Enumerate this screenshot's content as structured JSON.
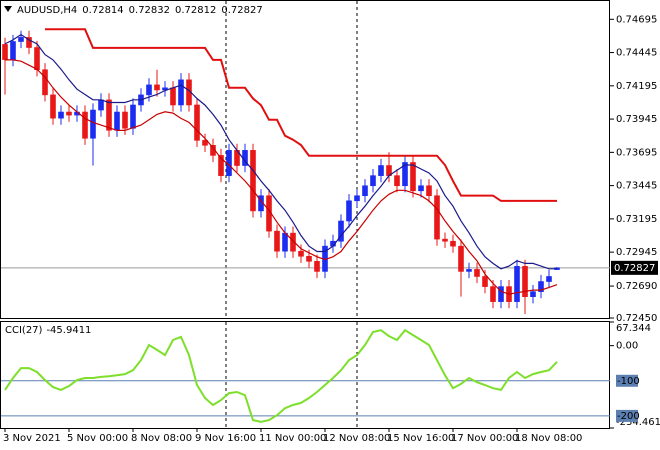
{
  "chart_data": [
    {
      "type": "candlestick",
      "title": "AUDUSD,H4",
      "categories": [
        "3 Nov 2021",
        null,
        null,
        null,
        null,
        null,
        null,
        null,
        "5 Nov 00:00",
        null,
        null,
        null,
        null,
        null,
        null,
        null,
        "8 Nov 08:00",
        null,
        null,
        null,
        null,
        null,
        null,
        null,
        "9 Nov 16:00",
        null,
        null,
        null,
        null,
        null,
        null,
        null,
        "11 Nov 00:00",
        null,
        null,
        null,
        null,
        null,
        null,
        null,
        "12 Nov 08:00",
        null,
        null,
        null,
        null,
        null,
        null,
        null,
        "15 Nov 16:00",
        null,
        null,
        null,
        null,
        null,
        null,
        null,
        "17 Nov 00:00",
        null,
        null,
        null,
        null,
        null,
        null,
        null,
        "18 Nov 08:00",
        null,
        null,
        null,
        null,
        null
      ],
      "open": [
        0.74506,
        0.74392,
        0.74528,
        0.74559,
        0.74483,
        0.74316,
        0.74127,
        0.73952,
        0.73998,
        0.73975,
        0.73998,
        0.73801,
        0.74013,
        0.74089,
        0.73861,
        0.73998,
        0.73876,
        0.74051,
        0.74127,
        0.74202,
        0.74164,
        0.7418,
        0.74051,
        0.7424,
        0.74051,
        0.73785,
        0.73748,
        0.73672,
        0.7352,
        0.7371,
        0.73596,
        0.7371,
        0.73255,
        0.73369,
        0.73103,
        0.72952,
        0.73088,
        0.72952,
        0.72914,
        0.72876,
        0.728,
        0.7299,
        0.73027,
        0.73179,
        0.73331,
        0.73369,
        0.73444,
        0.7352,
        0.73596,
        0.7352,
        0.73444,
        0.73619,
        0.73406,
        0.73444,
        0.73369,
        0.73043,
        0.73027,
        0.7299,
        0.728,
        0.72815,
        0.72762,
        0.72686,
        0.72573,
        0.72686,
        0.72573,
        0.72838,
        0.7261,
        0.72648,
        0.72724,
        0.72814
      ],
      "high": [
        0.74556,
        0.74578,
        0.74609,
        0.74609,
        0.74533,
        0.74366,
        0.74177,
        0.74048,
        0.74048,
        0.74048,
        0.74048,
        0.74063,
        0.74139,
        0.74139,
        0.74048,
        0.74048,
        0.74101,
        0.74177,
        0.74252,
        0.74316,
        0.7423,
        0.7423,
        0.7429,
        0.7429,
        0.74101,
        0.73835,
        0.73798,
        0.73722,
        0.7376,
        0.7376,
        0.7376,
        0.7376,
        0.73419,
        0.73419,
        0.73153,
        0.73138,
        0.73138,
        0.73002,
        0.72964,
        0.72926,
        0.7304,
        0.73077,
        0.73229,
        0.73381,
        0.73419,
        0.73494,
        0.7357,
        0.73646,
        0.73696,
        0.7357,
        0.73669,
        0.73669,
        0.73494,
        0.73494,
        0.73419,
        0.73093,
        0.73077,
        0.7304,
        0.72865,
        0.72865,
        0.72812,
        0.72736,
        0.72736,
        0.72736,
        0.72888,
        0.72888,
        0.72698,
        0.72774,
        0.72812,
        0.72832
      ],
      "low": [
        0.7413,
        0.74342,
        0.74478,
        0.74433,
        0.74266,
        0.74077,
        0.73902,
        0.73902,
        0.73925,
        0.73925,
        0.73751,
        0.73596,
        0.73963,
        0.73811,
        0.73811,
        0.73826,
        0.73826,
        0.74001,
        0.74077,
        0.74114,
        0.74114,
        0.74001,
        0.74001,
        0.74001,
        0.73735,
        0.73698,
        0.73622,
        0.7347,
        0.7347,
        0.73546,
        0.73546,
        0.73205,
        0.73205,
        0.73053,
        0.72902,
        0.72902,
        0.72902,
        0.72864,
        0.72826,
        0.7275,
        0.7275,
        0.7294,
        0.72977,
        0.73129,
        0.73281,
        0.73319,
        0.73394,
        0.7347,
        0.7347,
        0.73394,
        0.73394,
        0.73356,
        0.73356,
        0.73319,
        0.72993,
        0.72977,
        0.7294,
        0.72611,
        0.7275,
        0.72712,
        0.72636,
        0.72523,
        0.72523,
        0.72523,
        0.72523,
        0.7248,
        0.7256,
        0.72598,
        0.72674,
        0.72812
      ],
      "close": [
        0.74392,
        0.74528,
        0.74559,
        0.74483,
        0.74316,
        0.74127,
        0.73952,
        0.73998,
        0.73975,
        0.73998,
        0.73801,
        0.74013,
        0.74089,
        0.73861,
        0.73998,
        0.73876,
        0.74051,
        0.74127,
        0.74202,
        0.74164,
        0.7418,
        0.74051,
        0.7424,
        0.74051,
        0.73785,
        0.73748,
        0.73672,
        0.7352,
        0.7371,
        0.73596,
        0.7371,
        0.73255,
        0.73369,
        0.73103,
        0.72952,
        0.73088,
        0.72952,
        0.72914,
        0.72876,
        0.728,
        0.7299,
        0.73027,
        0.73179,
        0.73331,
        0.73369,
        0.73444,
        0.7352,
        0.73596,
        0.7352,
        0.73444,
        0.73619,
        0.73406,
        0.73444,
        0.73369,
        0.73043,
        0.73027,
        0.7299,
        0.728,
        0.72815,
        0.72762,
        0.72686,
        0.72573,
        0.72686,
        0.72573,
        0.72838,
        0.7261,
        0.72648,
        0.72724,
        0.72762,
        0.72827
      ],
      "colors": {
        "up": "#1c2cf0",
        "down": "#e81818"
      },
      "series": [
        {
          "color": "#1a1a8c",
          "values": [
            0.7451,
            0.7454,
            0.7458,
            0.7454,
            0.7451,
            0.7443,
            0.7439,
            0.7432,
            0.7424,
            0.7417,
            0.7413,
            0.7409,
            0.7409,
            0.7407,
            0.7407,
            0.7407,
            0.7409,
            0.7409,
            0.7411,
            0.7413,
            0.7416,
            0.7418,
            0.742,
            0.7416,
            0.741,
            0.7405,
            0.7398,
            0.739,
            0.7379,
            0.7371,
            0.7363,
            0.7356,
            0.7348,
            0.7341,
            0.7333,
            0.7326,
            0.7317,
            0.7307,
            0.7299,
            0.7295,
            0.7295,
            0.7299,
            0.7307,
            0.7314,
            0.7322,
            0.7329,
            0.7337,
            0.7344,
            0.7352,
            0.7356,
            0.736,
            0.736,
            0.7357,
            0.7354,
            0.7348,
            0.7337,
            0.7329,
            0.7318,
            0.7309,
            0.7299,
            0.7291,
            0.7286,
            0.7282,
            0.7284,
            0.7288,
            0.7286,
            0.7286,
            0.7284,
            0.7282,
            0.7282
          ]
        },
        {
          "color": "#c80000",
          "values": [
            0.7439,
            0.7439,
            0.7438,
            0.7435,
            0.7432,
            0.7426,
            0.7418,
            0.7411,
            0.7405,
            0.74,
            0.7395,
            0.7392,
            0.739,
            0.7388,
            0.7386,
            0.7386,
            0.7388,
            0.739,
            0.7394,
            0.7398,
            0.74,
            0.7399,
            0.7395,
            0.7392,
            0.7386,
            0.738,
            0.7373,
            0.7365,
            0.736,
            0.7354,
            0.7348,
            0.7341,
            0.7333,
            0.7326,
            0.7317,
            0.7309,
            0.7303,
            0.7297,
            0.7294,
            0.7291,
            0.7289,
            0.7291,
            0.7295,
            0.7303,
            0.731,
            0.7318,
            0.7326,
            0.7333,
            0.7338,
            0.7341,
            0.7341,
            0.7339,
            0.7337,
            0.7333,
            0.7327,
            0.7318,
            0.731,
            0.7303,
            0.7295,
            0.7288,
            0.7278,
            0.7271,
            0.7265,
            0.7263,
            0.7264,
            0.7265,
            0.7266,
            0.7266,
            0.7268,
            0.727
          ]
        },
        {
          "color": "#e01010",
          "values": [
            null,
            null,
            null,
            null,
            null,
            0.7462,
            0.7462,
            0.7462,
            0.7462,
            0.7462,
            0.7462,
            0.7448,
            0.7448,
            0.7448,
            0.7448,
            0.7448,
            0.7448,
            0.7448,
            0.7448,
            0.7448,
            0.7448,
            0.7448,
            0.7448,
            0.7448,
            0.7448,
            0.7448,
            0.7439,
            0.7439,
            0.7418,
            0.7418,
            0.7418,
            0.741,
            0.7405,
            0.7394,
            0.7394,
            0.7382,
            0.7379,
            0.7375,
            0.7367,
            0.7367,
            0.7367,
            0.7367,
            0.7367,
            0.7367,
            0.7367,
            0.7367,
            0.7367,
            0.7367,
            0.7367,
            0.7367,
            0.7367,
            0.7367,
            0.7367,
            0.7367,
            0.7367,
            0.736,
            0.7348,
            0.7337,
            0.7337,
            0.7337,
            0.7337,
            0.7337,
            0.7333,
            0.7333,
            0.7333,
            0.7333,
            0.7333,
            0.7333,
            0.7333,
            0.7333
          ]
        }
      ],
      "ylim": [
        0.7245,
        0.7481
      ],
      "yticks": [
        0.74695,
        0.74445,
        0.74195,
        0.73945,
        0.73695,
        0.73445,
        0.73195,
        0.72945,
        {
          "value": 0.7269,
          "label": "0.72690"
        },
        {
          "value": 0.7245,
          "label": "0.72450"
        }
      ]
    },
    {
      "type": "line",
      "title": "CCI(27)",
      "color": "#7ddf2a",
      "values": [
        -126,
        -92,
        -64,
        -64,
        -75,
        -98,
        -118,
        -126,
        -115,
        -98,
        -92,
        -92,
        -89,
        -87,
        -84,
        -81,
        -70,
        -41,
        2,
        -12,
        -27,
        16,
        25,
        -27,
        -112,
        -149,
        -169,
        -155,
        -135,
        -132,
        -141,
        -212,
        -217,
        -212,
        -198,
        -178,
        -169,
        -163,
        -149,
        -132,
        -112,
        -92,
        -70,
        -41,
        -27,
        2,
        39,
        44,
        27,
        16,
        44,
        30,
        16,
        2,
        -41,
        -84,
        -121,
        -109,
        -92,
        -104,
        -112,
        -121,
        -126,
        -92,
        -75,
        -92,
        -81,
        -75,
        -70,
        -45.9411
      ],
      "ylim": [
        -234.4616,
        67.344
      ],
      "yticks": [
        67.344,
        {
          "value": 0,
          "label": "0.00"
        },
        -234.4616
      ],
      "levels": [
        -100,
        -200
      ],
      "level_color": "#5b7fb0"
    }
  ]
}
